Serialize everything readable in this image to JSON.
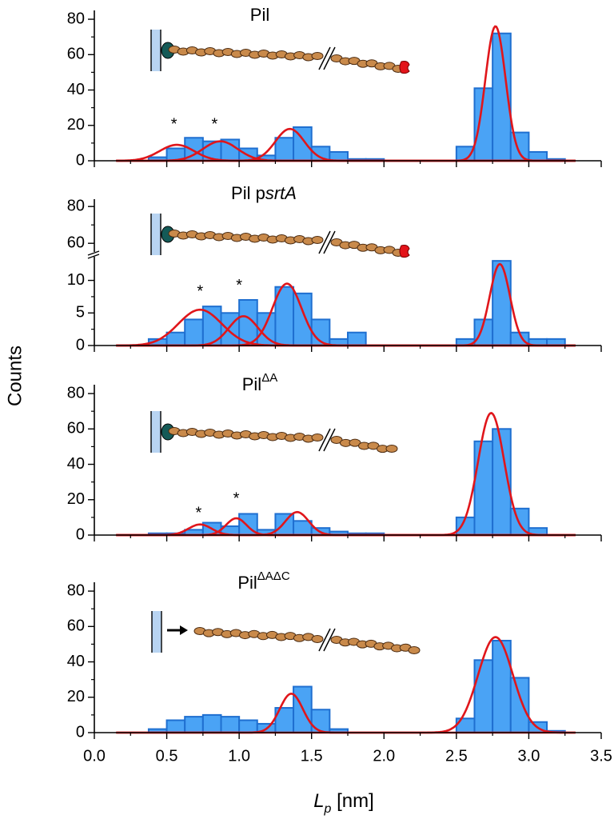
{
  "ylabel": "Counts",
  "xlabel": "L",
  "xlabel_subscript": "p",
  "xlabel_unit": " [nm]",
  "chart_data": [
    {
      "type": "histogram",
      "title": "Pil",
      "bins": [
        0.25,
        0.375,
        0.5,
        0.625,
        0.75,
        0.875,
        1.0,
        1.125,
        1.25,
        1.375,
        1.5,
        1.625,
        1.75,
        1.875,
        2.0,
        2.125,
        2.25,
        2.375,
        2.5,
        2.625,
        2.75,
        2.875,
        3.0,
        3.125,
        3.25
      ],
      "values": [
        0,
        2,
        7,
        13,
        11,
        12,
        7,
        3,
        13,
        19,
        8,
        5,
        1,
        1,
        0,
        0,
        0,
        0,
        8,
        41,
        72,
        16,
        5,
        1
      ],
      "color": "#4aa3f5",
      "edgecolor": "#1f6fd0",
      "fits": [
        {
          "center": 0.57,
          "width": 0.12,
          "height": 9
        },
        {
          "center": 0.87,
          "width": 0.12,
          "height": 11
        },
        {
          "center": 1.35,
          "width": 0.1,
          "height": 18
        },
        {
          "center": 2.77,
          "width": 0.07,
          "height": 76
        }
      ],
      "fit_color": "#e0161b",
      "annotations": [
        {
          "text": "*",
          "x": 0.55,
          "y": 22
        },
        {
          "text": "*",
          "x": 0.83,
          "y": 22
        }
      ],
      "xlim": [
        0,
        3.5
      ],
      "xticks": [
        0,
        0.5,
        1,
        1.5,
        2,
        2.5,
        3,
        3.5
      ],
      "ylim": [
        0,
        85
      ],
      "yticks": [
        0,
        20,
        40,
        60,
        80
      ]
    },
    {
      "type": "histogram",
      "title": "Pil p",
      "title_italic": "srtA",
      "bins": [
        0.25,
        0.375,
        0.5,
        0.625,
        0.75,
        0.875,
        1.0,
        1.125,
        1.25,
        1.375,
        1.5,
        1.625,
        1.75,
        1.875,
        2.0,
        2.125,
        2.25,
        2.375,
        2.5,
        2.625,
        2.75,
        2.875,
        3.0,
        3.125,
        3.25
      ],
      "values": [
        0,
        1,
        2,
        4,
        6,
        5,
        7,
        5,
        9,
        8,
        4,
        1,
        2,
        0,
        0,
        0,
        0,
        0,
        1,
        4,
        13,
        2,
        1,
        1
      ],
      "color": "#4aa3f5",
      "edgecolor": "#1f6fd0",
      "fits": [
        {
          "center": 0.73,
          "width": 0.15,
          "height": 5.5
        },
        {
          "center": 1.03,
          "width": 0.1,
          "height": 4.5
        },
        {
          "center": 1.33,
          "width": 0.1,
          "height": 9.5
        },
        {
          "center": 2.8,
          "width": 0.07,
          "height": 12.5
        }
      ],
      "fit_color": "#e0161b",
      "annotations": [
        {
          "text": "*",
          "x": 0.73,
          "y": 8.7
        },
        {
          "text": "*",
          "x": 1.0,
          "y": 9.6
        }
      ],
      "xlim": [
        0,
        3.5
      ],
      "xticks": [
        0,
        0.5,
        1,
        1.5,
        2,
        2.5,
        3,
        3.5
      ],
      "ylim": [
        0,
        14
      ],
      "yticks": [
        0,
        5,
        10
      ],
      "ylim_upper": [
        54,
        84
      ],
      "yticks_upper": [
        60,
        80
      ]
    },
    {
      "type": "histogram",
      "title": "Pil",
      "title_superscript": "ΔA",
      "bins": [
        0.25,
        0.375,
        0.5,
        0.625,
        0.75,
        0.875,
        1.0,
        1.125,
        1.25,
        1.375,
        1.5,
        1.625,
        1.75,
        1.875,
        2.0,
        2.125,
        2.25,
        2.375,
        2.5,
        2.625,
        2.75,
        2.875,
        3.0,
        3.125,
        3.25
      ],
      "values": [
        0,
        1,
        1,
        3,
        7,
        5,
        12,
        3,
        12,
        8,
        4,
        2,
        1,
        1,
        0,
        0,
        0,
        0,
        10,
        53,
        60,
        15,
        4,
        0
      ],
      "color": "#4aa3f5",
      "edgecolor": "#1f6fd0",
      "fits": [
        {
          "center": 0.73,
          "width": 0.08,
          "height": 6
        },
        {
          "center": 0.98,
          "width": 0.07,
          "height": 9.5
        },
        {
          "center": 1.4,
          "width": 0.08,
          "height": 13
        },
        {
          "center": 2.74,
          "width": 0.09,
          "height": 69
        }
      ],
      "fit_color": "#e0161b",
      "annotations": [
        {
          "text": "*",
          "x": 0.72,
          "y": 14
        },
        {
          "text": "*",
          "x": 0.98,
          "y": 22
        }
      ],
      "xlim": [
        0,
        3.5
      ],
      "xticks": [
        0,
        0.5,
        1,
        1.5,
        2,
        2.5,
        3,
        3.5
      ],
      "ylim": [
        0,
        85
      ],
      "yticks": [
        0,
        20,
        40,
        60,
        80
      ]
    },
    {
      "type": "histogram",
      "title": "Pil",
      "title_superscript": "ΔAΔC",
      "bins": [
        0.25,
        0.375,
        0.5,
        0.625,
        0.75,
        0.875,
        1.0,
        1.125,
        1.25,
        1.375,
        1.5,
        1.625,
        1.75,
        1.875,
        2.0,
        2.125,
        2.25,
        2.375,
        2.5,
        2.625,
        2.75,
        2.875,
        3.0,
        3.125,
        3.25
      ],
      "values": [
        0,
        2,
        7,
        9,
        10,
        9,
        7,
        5,
        14,
        26,
        13,
        2,
        0,
        0,
        0,
        0,
        0,
        0,
        8,
        41,
        52,
        31,
        6,
        1
      ],
      "color": "#4aa3f5",
      "edgecolor": "#1f6fd0",
      "fits": [
        {
          "center": 1.36,
          "width": 0.08,
          "height": 22
        },
        {
          "center": 2.77,
          "width": 0.12,
          "height": 54
        }
      ],
      "fit_color": "#e0161b",
      "xlim": [
        0,
        3.5
      ],
      "xticks": [
        {
          "value": 0,
          "label": "0.0"
        },
        {
          "value": 0.5,
          "label": "0.5"
        },
        {
          "value": 1,
          "label": "1.0"
        },
        {
          "value": 1.5,
          "label": "1.5"
        },
        {
          "value": 2,
          "label": "2.0"
        },
        {
          "value": 2.5,
          "label": "2.5"
        },
        {
          "value": 3,
          "label": "3.0"
        },
        {
          "value": 3.5,
          "label": "3.5"
        }
      ],
      "ylim": [
        0,
        85
      ],
      "yticks": [
        0,
        20,
        40,
        60,
        80
      ]
    }
  ]
}
